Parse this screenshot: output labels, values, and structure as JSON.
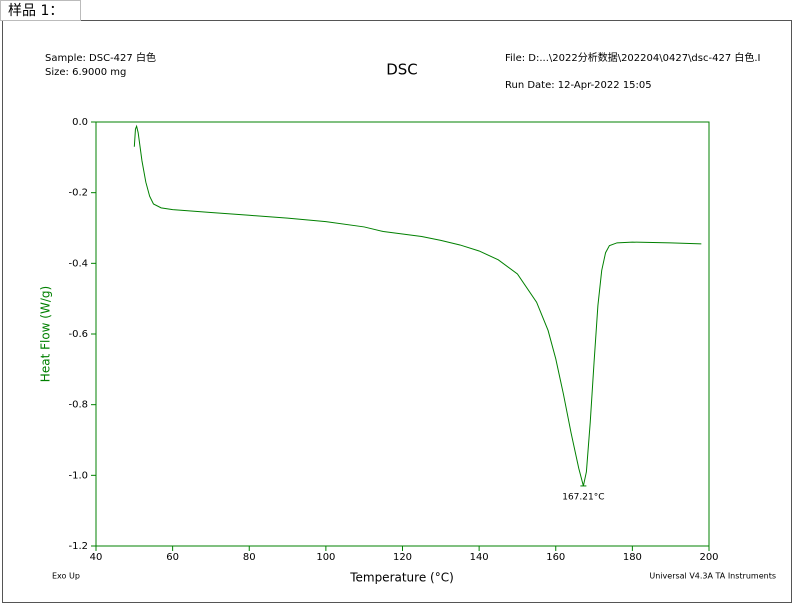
{
  "caption": "样品 1：",
  "chart_data": {
    "type": "line",
    "title": "DSC",
    "info_left": [
      "Sample: DSC-427 白色",
      "Size:  6.9000 mg"
    ],
    "info_right": [
      "File: D:...\\2022分析数据\\202204\\0427\\dsc-427 白色.I",
      "Run Date: 12-Apr-2022 15:05"
    ],
    "footer_left": "Exo Up",
    "footer_right": "Universal V4.3A TA Instruments",
    "xlabel": "Temperature (°C)",
    "ylabel": "Heat Flow (W/g)",
    "xlim": [
      40,
      200
    ],
    "ylim": [
      -1.2,
      0.0
    ],
    "xticks": [
      40,
      60,
      80,
      100,
      120,
      140,
      160,
      180,
      200
    ],
    "yticks": [
      {
        "value": 0,
        "label": "0.0"
      },
      -0.2,
      -0.4,
      -0.6,
      -0.8,
      {
        "value": -1,
        "label": "-1.0"
      },
      -1.2
    ],
    "x": [
      50.0,
      50.3,
      50.6,
      51,
      52,
      53,
      54,
      55,
      57,
      60,
      70,
      80,
      90,
      100,
      110,
      115,
      120,
      125,
      130,
      135,
      140,
      145,
      150,
      155,
      158,
      160,
      162,
      164,
      166,
      167.21,
      168,
      169,
      170,
      171,
      172,
      173,
      174,
      176,
      180,
      190,
      198
    ],
    "series": [
      {
        "color": "#008000",
        "values": [
          -0.07,
          -0.02,
          -0.012,
          -0.03,
          -0.11,
          -0.17,
          -0.21,
          -0.232,
          -0.243,
          -0.248,
          -0.256,
          -0.264,
          -0.272,
          -0.282,
          -0.297,
          -0.31,
          -0.317,
          -0.324,
          -0.335,
          -0.348,
          -0.365,
          -0.39,
          -0.43,
          -0.51,
          -0.59,
          -0.67,
          -0.77,
          -0.88,
          -0.98,
          -1.03,
          -0.99,
          -0.85,
          -0.68,
          -0.52,
          -0.42,
          -0.37,
          -0.35,
          -0.342,
          -0.34,
          -0.342,
          -0.345
        ]
      }
    ],
    "annotations": [
      {
        "text": "167.21°C",
        "x": 167.21,
        "y": -1.03
      }
    ]
  }
}
